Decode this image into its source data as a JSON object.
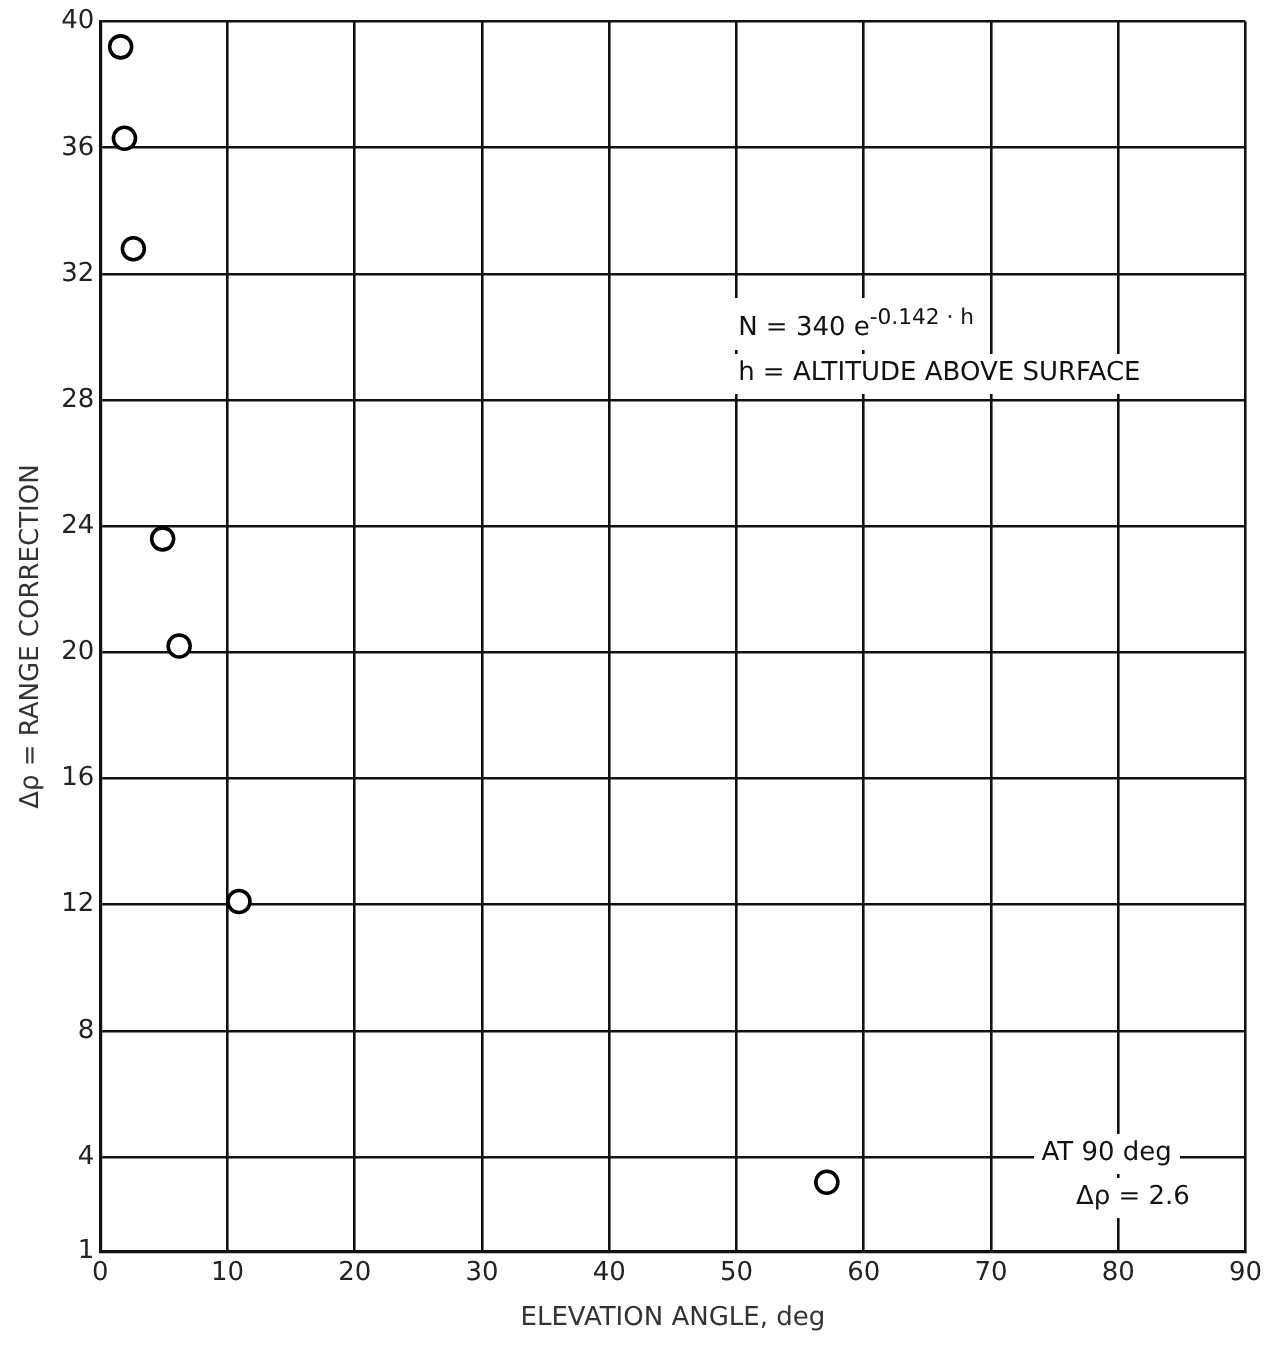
{
  "chart_data": {
    "type": "scatter",
    "xlabel": "ELEVATION ANGLE, deg",
    "ylabel": "Δρ = RANGE CORRECTION",
    "x": [
      1.6,
      1.9,
      2.6,
      4.9,
      6.2,
      10.9,
      57.1
    ],
    "series": [
      {
        "color": "#000000",
        "values": [
          39.2,
          36.3,
          32.8,
          23.6,
          20.2,
          12.1,
          3.2
        ]
      }
    ],
    "xlim": [
      0,
      90
    ],
    "xticks": [
      0,
      10,
      20,
      30,
      40,
      50,
      60,
      70,
      80,
      90
    ],
    "ylim": [
      1,
      40
    ],
    "yticks": [
      1,
      4,
      8,
      12,
      16,
      20,
      24,
      28,
      32,
      36,
      40
    ],
    "grid": true,
    "legend": false,
    "marker": "circle",
    "annotations": [
      "N = 340 e$^{-0.142 · h}$",
      "h = ALTITUDE ABOVE SURFACE",
      "AT 90 deg",
      "Δρ = 2.6"
    ]
  }
}
